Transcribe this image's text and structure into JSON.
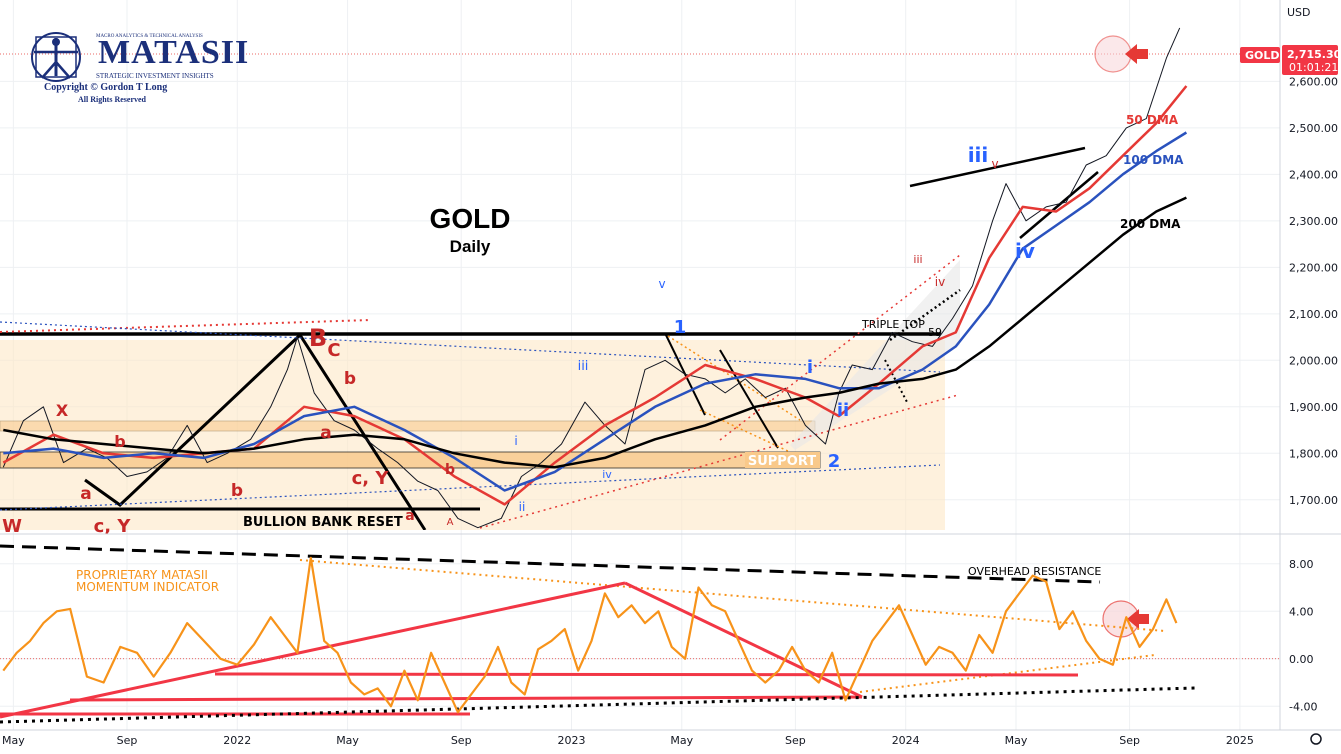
{
  "logo": {
    "tagline": "MACRO ANALYTICS & TECHNICAL ANALYSIS",
    "name": "MATASII",
    "subtitle": "STRATEGIC INVESTMENT INSIGHTS",
    "copyright": "Copyright © Gordon T Long",
    "rights": "All Rights Reserved"
  },
  "currency": "USD",
  "colors": {
    "price": "#131722",
    "ma50": "#e53935",
    "ma100": "#2a52be",
    "ma200": "#000000",
    "momentum": "#f7931a",
    "wave_red": "#c62828",
    "wave_blue": "#2962ff",
    "tag_red": "#f23645",
    "zone": "#fde7c7"
  },
  "chart_data": [
    {
      "type": "line",
      "title": "GOLD",
      "subtitle": "Daily",
      "ticker_label": "GOLD",
      "last_price": "2,715.30",
      "countdown": "01:01:21",
      "x_ticks": [
        "May",
        "Sep",
        "2022",
        "May",
        "Sep",
        "2023",
        "May",
        "Sep",
        "2024",
        "May",
        "Sep",
        "2025"
      ],
      "y_ticks": [
        "1,700.00",
        "1,800.00",
        "1,900.00",
        "2,000.00",
        "2,100.00",
        "2,200.00",
        "2,300.00",
        "2,400.00",
        "2,500.00",
        "2,600.00"
      ],
      "ylim": [
        1635,
        2775
      ],
      "x_range": [
        2021.29,
        2025.12
      ],
      "grid": true,
      "series": [
        {
          "name": "GOLD",
          "x": [
            2021.3,
            2021.36,
            2021.42,
            2021.48,
            2021.55,
            2021.61,
            2021.67,
            2021.73,
            2021.79,
            2021.85,
            2021.91,
            2021.97,
            2022.04,
            2022.1,
            2022.15,
            2022.18,
            2022.23,
            2022.29,
            2022.35,
            2022.42,
            2022.48,
            2022.54,
            2022.6,
            2022.66,
            2022.72,
            2022.79,
            2022.85,
            2022.91,
            2022.97,
            2023.04,
            2023.1,
            2023.16,
            2023.22,
            2023.28,
            2023.34,
            2023.4,
            2023.46,
            2023.52,
            2023.58,
            2023.64,
            2023.7,
            2023.76,
            2023.8,
            2023.84,
            2023.9,
            2023.96,
            2024.02,
            2024.08,
            2024.14,
            2024.2,
            2024.26,
            2024.3,
            2024.36,
            2024.42,
            2024.48,
            2024.54,
            2024.6,
            2024.66,
            2024.72,
            2024.78,
            2024.82
          ],
          "values": [
            1770,
            1870,
            1900,
            1780,
            1810,
            1790,
            1750,
            1760,
            1790,
            1860,
            1780,
            1800,
            1830,
            1900,
            1980,
            2050,
            1930,
            1870,
            1850,
            1810,
            1780,
            1740,
            1720,
            1660,
            1640,
            1660,
            1750,
            1780,
            1820,
            1910,
            1860,
            1820,
            1980,
            2000,
            1970,
            1960,
            1930,
            1960,
            1920,
            1940,
            1860,
            1820,
            1930,
            1990,
            1980,
            2060,
            2040,
            2030,
            2090,
            2160,
            2300,
            2380,
            2300,
            2330,
            2340,
            2420,
            2440,
            2500,
            2520,
            2650,
            2715
          ]
        },
        {
          "name": "50 DMA",
          "x": [
            2021.3,
            2021.45,
            2021.6,
            2021.75,
            2021.9,
            2022.05,
            2022.2,
            2022.35,
            2022.5,
            2022.65,
            2022.8,
            2022.95,
            2023.1,
            2023.25,
            2023.4,
            2023.55,
            2023.7,
            2023.8,
            2023.92,
            2024.05,
            2024.15,
            2024.25,
            2024.35,
            2024.45,
            2024.55,
            2024.65,
            2024.75,
            2024.84
          ],
          "values": [
            1780,
            1840,
            1800,
            1790,
            1800,
            1810,
            1900,
            1880,
            1830,
            1750,
            1690,
            1780,
            1860,
            1920,
            1990,
            1960,
            1920,
            1880,
            1950,
            2030,
            2060,
            2220,
            2330,
            2320,
            2370,
            2440,
            2510,
            2590
          ]
        },
        {
          "name": "100 DMA",
          "x": [
            2021.3,
            2021.45,
            2021.6,
            2021.75,
            2021.9,
            2022.05,
            2022.2,
            2022.35,
            2022.5,
            2022.65,
            2022.8,
            2022.95,
            2023.1,
            2023.25,
            2023.4,
            2023.55,
            2023.7,
            2023.8,
            2023.92,
            2024.05,
            2024.15,
            2024.25,
            2024.35,
            2024.45,
            2024.55,
            2024.65,
            2024.75,
            2024.84
          ],
          "values": [
            1800,
            1810,
            1790,
            1800,
            1790,
            1820,
            1880,
            1900,
            1850,
            1790,
            1720,
            1760,
            1830,
            1900,
            1950,
            1970,
            1960,
            1940,
            1940,
            1980,
            2030,
            2120,
            2240,
            2290,
            2340,
            2400,
            2450,
            2490
          ]
        },
        {
          "name": "200 DMA",
          "x": [
            2021.3,
            2021.45,
            2021.6,
            2021.75,
            2021.9,
            2022.05,
            2022.2,
            2022.35,
            2022.5,
            2022.65,
            2022.8,
            2022.95,
            2023.1,
            2023.25,
            2023.4,
            2023.55,
            2023.7,
            2023.8,
            2023.92,
            2024.05,
            2024.15,
            2024.25,
            2024.35,
            2024.45,
            2024.55,
            2024.65,
            2024.75,
            2024.84
          ],
          "values": [
            1850,
            1830,
            1820,
            1810,
            1800,
            1810,
            1830,
            1840,
            1830,
            1800,
            1780,
            1770,
            1790,
            1830,
            1860,
            1900,
            1920,
            1930,
            1950,
            1960,
            1980,
            2030,
            2090,
            2150,
            2210,
            2270,
            2320,
            2350
          ]
        }
      ],
      "annotations": [
        "GOLD",
        "Daily",
        "50 DMA",
        "100 DMA",
        "200 DMA",
        "BULLION BANK RESET",
        "SUPPORT",
        "TRIPLE TOP",
        "59",
        "iii",
        "iv",
        "i",
        "ii",
        "v",
        "1",
        "2",
        "iii",
        "iv",
        "ii",
        "i",
        "iii",
        "v",
        "iv",
        "B",
        "C",
        "b",
        "a",
        "b",
        "a",
        "b",
        "c, Y",
        "c, Y",
        "W",
        "X",
        "a",
        "b",
        "A"
      ]
    },
    {
      "type": "line",
      "title": "PROPRIETARY MATASII MOMENTUM INDICATOR",
      "y_ticks": [
        "8.00",
        "4.00",
        "0.00",
        "-4.00"
      ],
      "ylim": [
        -6,
        10
      ],
      "annotations": [
        "OVERHEAD RESISTANCE"
      ],
      "series": [
        {
          "name": "Momentum",
          "x": [
            2021.3,
            2021.34,
            2021.38,
            2021.42,
            2021.46,
            2021.5,
            2021.55,
            2021.6,
            2021.65,
            2021.7,
            2021.75,
            2021.8,
            2021.85,
            2021.9,
            2021.95,
            2022.0,
            2022.05,
            2022.1,
            2022.14,
            2022.18,
            2022.22,
            2022.26,
            2022.3,
            2022.34,
            2022.38,
            2022.42,
            2022.46,
            2022.5,
            2022.54,
            2022.58,
            2022.62,
            2022.66,
            2022.7,
            2022.74,
            2022.78,
            2022.82,
            2022.86,
            2022.9,
            2022.94,
            2022.98,
            2023.02,
            2023.06,
            2023.1,
            2023.14,
            2023.18,
            2023.22,
            2023.26,
            2023.3,
            2023.34,
            2023.38,
            2023.42,
            2023.46,
            2023.5,
            2023.54,
            2023.58,
            2023.62,
            2023.66,
            2023.7,
            2023.74,
            2023.78,
            2023.82,
            2023.86,
            2023.9,
            2023.94,
            2023.98,
            2024.02,
            2024.06,
            2024.1,
            2024.14,
            2024.18,
            2024.22,
            2024.26,
            2024.3,
            2024.34,
            2024.38,
            2024.42,
            2024.46,
            2024.5,
            2024.54,
            2024.58,
            2024.62,
            2024.66,
            2024.7,
            2024.74,
            2024.78,
            2024.81
          ],
          "values": [
            -1,
            0.5,
            1.5,
            3,
            4,
            4.2,
            -1.5,
            -2,
            1,
            0.5,
            -1.5,
            0.5,
            3,
            1.5,
            0,
            -0.5,
            1.2,
            3.5,
            2,
            0.5,
            8.5,
            1.5,
            0.5,
            -2,
            -3,
            -2.5,
            -4,
            -1,
            -3.5,
            0.5,
            -2,
            -4.5,
            -3,
            -1.5,
            1,
            -2,
            -3,
            0.8,
            1.5,
            2.5,
            -1,
            1.5,
            5.5,
            3.5,
            4.5,
            3,
            4,
            1,
            0,
            6,
            4.5,
            4,
            1.5,
            -1,
            -2,
            -1,
            1,
            -1,
            -2,
            0.5,
            -3.5,
            -1,
            1.5,
            3,
            4.5,
            2,
            -0.5,
            1,
            0.5,
            -1,
            2,
            0.5,
            4,
            5.5,
            7,
            6.5,
            2.5,
            4,
            1.5,
            0,
            -0.5,
            3.5,
            1,
            2.5,
            5,
            3
          ]
        }
      ]
    }
  ]
}
